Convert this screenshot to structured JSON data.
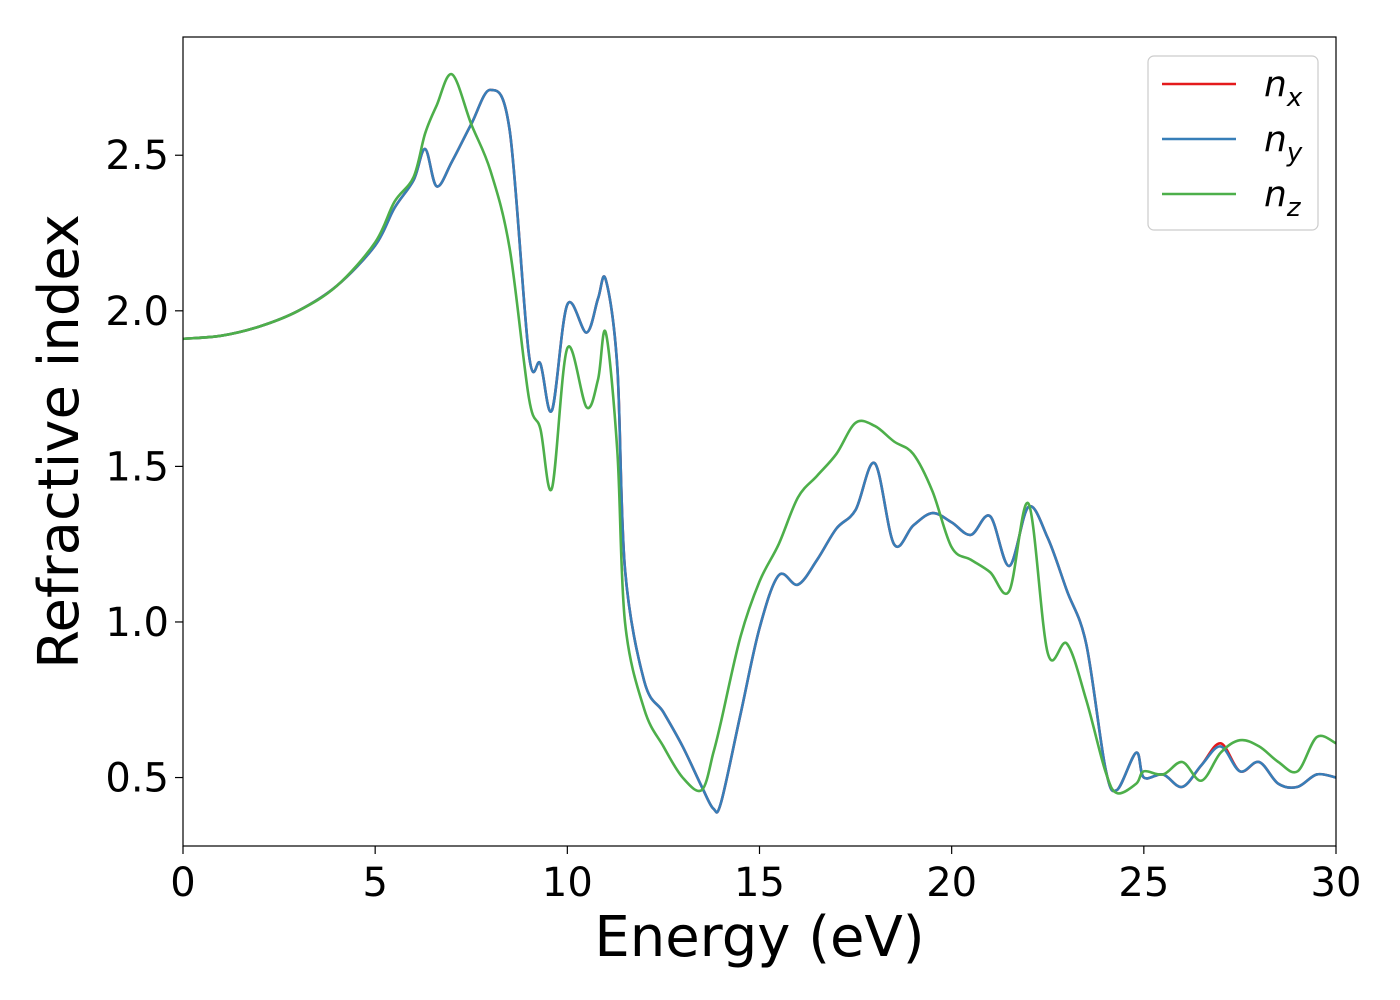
{
  "chart_data": {
    "type": "line",
    "xlabel": "Energy (eV)",
    "ylabel": "Refractive index",
    "xlim": [
      0,
      30
    ],
    "ylim": [
      0.28,
      2.88
    ],
    "xticks": [
      0,
      5,
      10,
      15,
      20,
      25,
      30
    ],
    "xtick_labels": [
      "0",
      "5",
      "10",
      "15",
      "20",
      "25",
      "30"
    ],
    "yticks": [
      0.5,
      1.0,
      1.5,
      2.0,
      2.5
    ],
    "ytick_labels": [
      "0.5",
      "1.0",
      "1.5",
      "2.0",
      "2.5"
    ],
    "grid": false,
    "legend_position": "top-right",
    "series": [
      {
        "name": "n_x",
        "label_base": "n",
        "label_sub": "x",
        "color": "#e41a1c",
        "x": [
          0,
          1,
          2,
          3,
          4,
          5,
          5.5,
          6,
          6.3,
          6.6,
          7,
          7.5,
          8,
          8.5,
          9,
          9.3,
          9.6,
          10,
          10.5,
          10.8,
          11,
          11.3,
          11.5,
          12,
          12.5,
          13,
          13.5,
          13.8,
          14,
          14.5,
          15,
          15.5,
          16,
          16.5,
          17,
          17.5,
          18,
          18.5,
          19,
          19.5,
          20,
          20.5,
          21,
          21.5,
          22,
          22.5,
          23,
          23.5,
          24,
          24.3,
          24.8,
          25,
          25.5,
          26,
          26.5,
          27,
          27.5,
          28,
          28.5,
          29,
          29.5,
          30
        ],
        "y": [
          1.91,
          1.92,
          1.95,
          2.0,
          2.08,
          2.21,
          2.33,
          2.42,
          2.52,
          2.4,
          2.48,
          2.6,
          2.71,
          2.58,
          1.86,
          1.83,
          1.68,
          2.02,
          1.93,
          2.04,
          2.1,
          1.82,
          1.17,
          0.81,
          0.71,
          0.6,
          0.47,
          0.4,
          0.42,
          0.7,
          0.98,
          1.15,
          1.12,
          1.2,
          1.3,
          1.36,
          1.51,
          1.25,
          1.31,
          1.35,
          1.32,
          1.28,
          1.34,
          1.18,
          1.37,
          1.27,
          1.1,
          0.93,
          0.53,
          0.46,
          0.58,
          0.5,
          0.51,
          0.47,
          0.54,
          0.61,
          0.52,
          0.55,
          0.48,
          0.47,
          0.51,
          0.5
        ]
      },
      {
        "name": "n_y",
        "label_base": "n",
        "label_sub": "y",
        "color": "#377eb8",
        "x": [
          0,
          1,
          2,
          3,
          4,
          5,
          5.5,
          6,
          6.3,
          6.6,
          7,
          7.5,
          8,
          8.5,
          9,
          9.3,
          9.6,
          10,
          10.5,
          10.8,
          11,
          11.3,
          11.5,
          12,
          12.5,
          13,
          13.5,
          13.8,
          14,
          14.5,
          15,
          15.5,
          16,
          16.5,
          17,
          17.5,
          18,
          18.5,
          19,
          19.5,
          20,
          20.5,
          21,
          21.5,
          22,
          22.5,
          23,
          23.5,
          24,
          24.3,
          24.8,
          25,
          25.5,
          26,
          26.5,
          27,
          27.5,
          28,
          28.5,
          29,
          29.5,
          30
        ],
        "y": [
          1.91,
          1.92,
          1.95,
          2.0,
          2.08,
          2.21,
          2.33,
          2.42,
          2.52,
          2.4,
          2.48,
          2.6,
          2.71,
          2.58,
          1.86,
          1.83,
          1.68,
          2.02,
          1.93,
          2.04,
          2.1,
          1.82,
          1.17,
          0.81,
          0.71,
          0.6,
          0.47,
          0.4,
          0.42,
          0.7,
          0.98,
          1.15,
          1.12,
          1.2,
          1.3,
          1.36,
          1.51,
          1.25,
          1.31,
          1.35,
          1.32,
          1.28,
          1.34,
          1.18,
          1.37,
          1.27,
          1.1,
          0.93,
          0.53,
          0.46,
          0.58,
          0.5,
          0.51,
          0.47,
          0.54,
          0.6,
          0.52,
          0.55,
          0.48,
          0.47,
          0.51,
          0.5
        ]
      },
      {
        "name": "n_z",
        "label_base": "n",
        "label_sub": "z",
        "color": "#4daf4a",
        "x": [
          0,
          1,
          2,
          3,
          4,
          5,
          5.5,
          6,
          6.3,
          6.6,
          7,
          7.5,
          8,
          8.5,
          9,
          9.3,
          9.6,
          10,
          10.5,
          10.8,
          11,
          11.3,
          11.5,
          12,
          12.5,
          13,
          13.5,
          13.8,
          14,
          14.5,
          15,
          15.5,
          16,
          16.5,
          17,
          17.5,
          18,
          18.5,
          19,
          19.5,
          20,
          20.5,
          21,
          21.5,
          22,
          22.5,
          23,
          23.5,
          24,
          24.3,
          24.8,
          25,
          25.5,
          26,
          26.5,
          27,
          27.5,
          28,
          28.5,
          29,
          29.5,
          30
        ],
        "y": [
          1.91,
          1.92,
          1.95,
          2.0,
          2.08,
          2.22,
          2.35,
          2.43,
          2.57,
          2.66,
          2.76,
          2.6,
          2.45,
          2.2,
          1.72,
          1.62,
          1.43,
          1.88,
          1.69,
          1.78,
          1.93,
          1.55,
          1.0,
          0.72,
          0.6,
          0.5,
          0.46,
          0.58,
          0.68,
          0.95,
          1.13,
          1.25,
          1.4,
          1.47,
          1.54,
          1.64,
          1.63,
          1.58,
          1.54,
          1.42,
          1.24,
          1.2,
          1.16,
          1.1,
          1.38,
          0.9,
          0.93,
          0.75,
          0.52,
          0.45,
          0.48,
          0.52,
          0.51,
          0.55,
          0.49,
          0.58,
          0.62,
          0.6,
          0.55,
          0.52,
          0.63,
          0.61
        ]
      }
    ]
  }
}
